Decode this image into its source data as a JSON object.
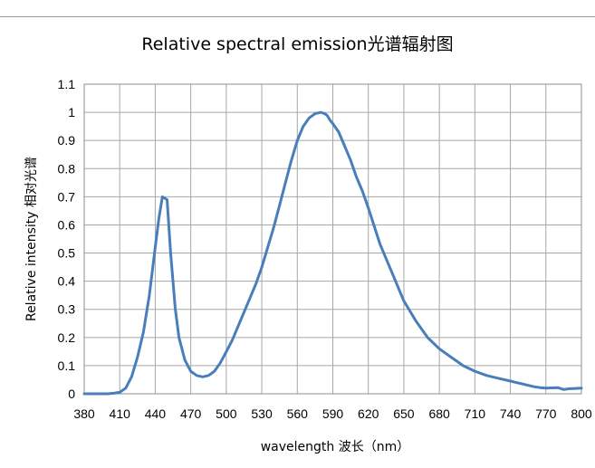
{
  "chart_data": {
    "type": "line",
    "title": "Relative spectral emission光谱辐射图",
    "xlabel": "wavelength 波长（nm）",
    "ylabel": "Relative intensity 相对光谱",
    "xlim": [
      380,
      800
    ],
    "ylim": [
      0,
      1.1
    ],
    "x_ticks": [
      "380",
      "410",
      "440",
      "470",
      "500",
      "530",
      "560",
      "590",
      "620",
      "650",
      "680",
      "710",
      "740",
      "770",
      "800"
    ],
    "y_ticks": [
      "0",
      "0.1",
      "0.2",
      "0.3",
      "0.4",
      "0.5",
      "0.6",
      "0.7",
      "0.8",
      "0.9",
      "1",
      "1.1"
    ],
    "grid": true,
    "legend": "none",
    "series": [
      {
        "color": "#4a7ebb",
        "x": [
          380,
          390,
          400,
          405,
          410,
          415,
          420,
          425,
          430,
          435,
          440,
          443,
          446,
          450,
          453,
          457,
          460,
          465,
          470,
          475,
          480,
          485,
          490,
          495,
          500,
          505,
          510,
          515,
          520,
          525,
          530,
          535,
          540,
          545,
          550,
          555,
          560,
          565,
          570,
          575,
          580,
          583,
          585,
          588,
          590,
          595,
          600,
          605,
          610,
          615,
          620,
          630,
          640,
          650,
          660,
          670,
          680,
          690,
          700,
          710,
          720,
          730,
          740,
          745,
          750,
          755,
          760,
          765,
          770,
          780,
          785,
          790,
          800
        ],
        "y": [
          0.0,
          0.0,
          0.0,
          0.002,
          0.005,
          0.02,
          0.06,
          0.13,
          0.22,
          0.35,
          0.52,
          0.62,
          0.7,
          0.69,
          0.5,
          0.3,
          0.2,
          0.12,
          0.08,
          0.065,
          0.06,
          0.065,
          0.08,
          0.11,
          0.15,
          0.19,
          0.24,
          0.29,
          0.34,
          0.39,
          0.45,
          0.52,
          0.59,
          0.67,
          0.75,
          0.83,
          0.9,
          0.95,
          0.98,
          0.995,
          1.0,
          0.995,
          0.99,
          0.97,
          0.96,
          0.93,
          0.88,
          0.83,
          0.77,
          0.72,
          0.66,
          0.53,
          0.43,
          0.33,
          0.26,
          0.2,
          0.16,
          0.13,
          0.1,
          0.08,
          0.065,
          0.055,
          0.045,
          0.04,
          0.035,
          0.03,
          0.025,
          0.022,
          0.02,
          0.022,
          0.015,
          0.018,
          0.02
        ]
      }
    ]
  }
}
